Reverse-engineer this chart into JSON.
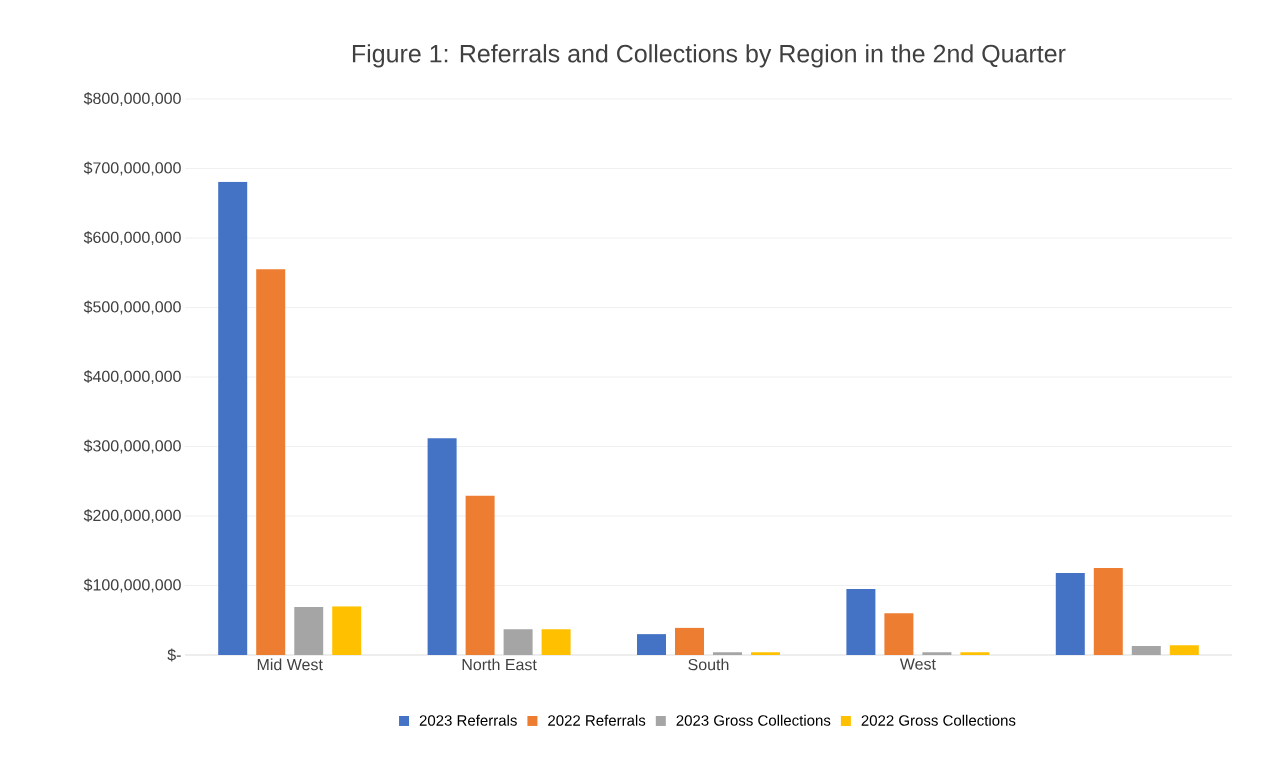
{
  "chart_data": {
    "type": "bar",
    "title": "Figure 1: Referrals and Collections by Region in the 2nd Quarter",
    "categories": [
      "Mid West",
      "North East",
      "South",
      "West",
      null
    ],
    "series": [
      {
        "name": "2023 Referrals",
        "color": "#4472c4",
        "values": [
          681000000,
          312000000,
          30000000,
          95000000,
          118000000
        ]
      },
      {
        "name": "2022 Referrals",
        "color": "#ed7d31",
        "values": [
          555000000,
          229000000,
          39000000,
          60000000,
          125000000
        ]
      },
      {
        "name": "2023 Gross Collections",
        "color": "#a5a5a5",
        "values": [
          69000000,
          37000000,
          4000000,
          4000000,
          13000000
        ]
      },
      {
        "name": "2022 Gross Collections",
        "color": "#ffc000",
        "values": [
          70000000,
          37000000,
          4000000,
          4000000,
          14000000
        ]
      }
    ],
    "ylim": [
      0,
      800000000
    ],
    "yticks": [
      {
        "value": 0,
        "label": "$-"
      },
      {
        "value": 100000000,
        "label": "$100,000,000"
      },
      {
        "value": 200000000,
        "label": "$200,000,000"
      },
      {
        "value": 300000000,
        "label": "$300,000,000"
      },
      {
        "value": 400000000,
        "label": "$400,000,000"
      },
      {
        "value": 500000000,
        "label": "$500,000,000"
      },
      {
        "value": 600000000,
        "label": "$600,000,000"
      },
      {
        "value": 700000000,
        "label": "$700,000,000"
      },
      {
        "value": 800000000,
        "label": "$800,000,000"
      }
    ],
    "grid": "y",
    "legend": "bottom"
  }
}
